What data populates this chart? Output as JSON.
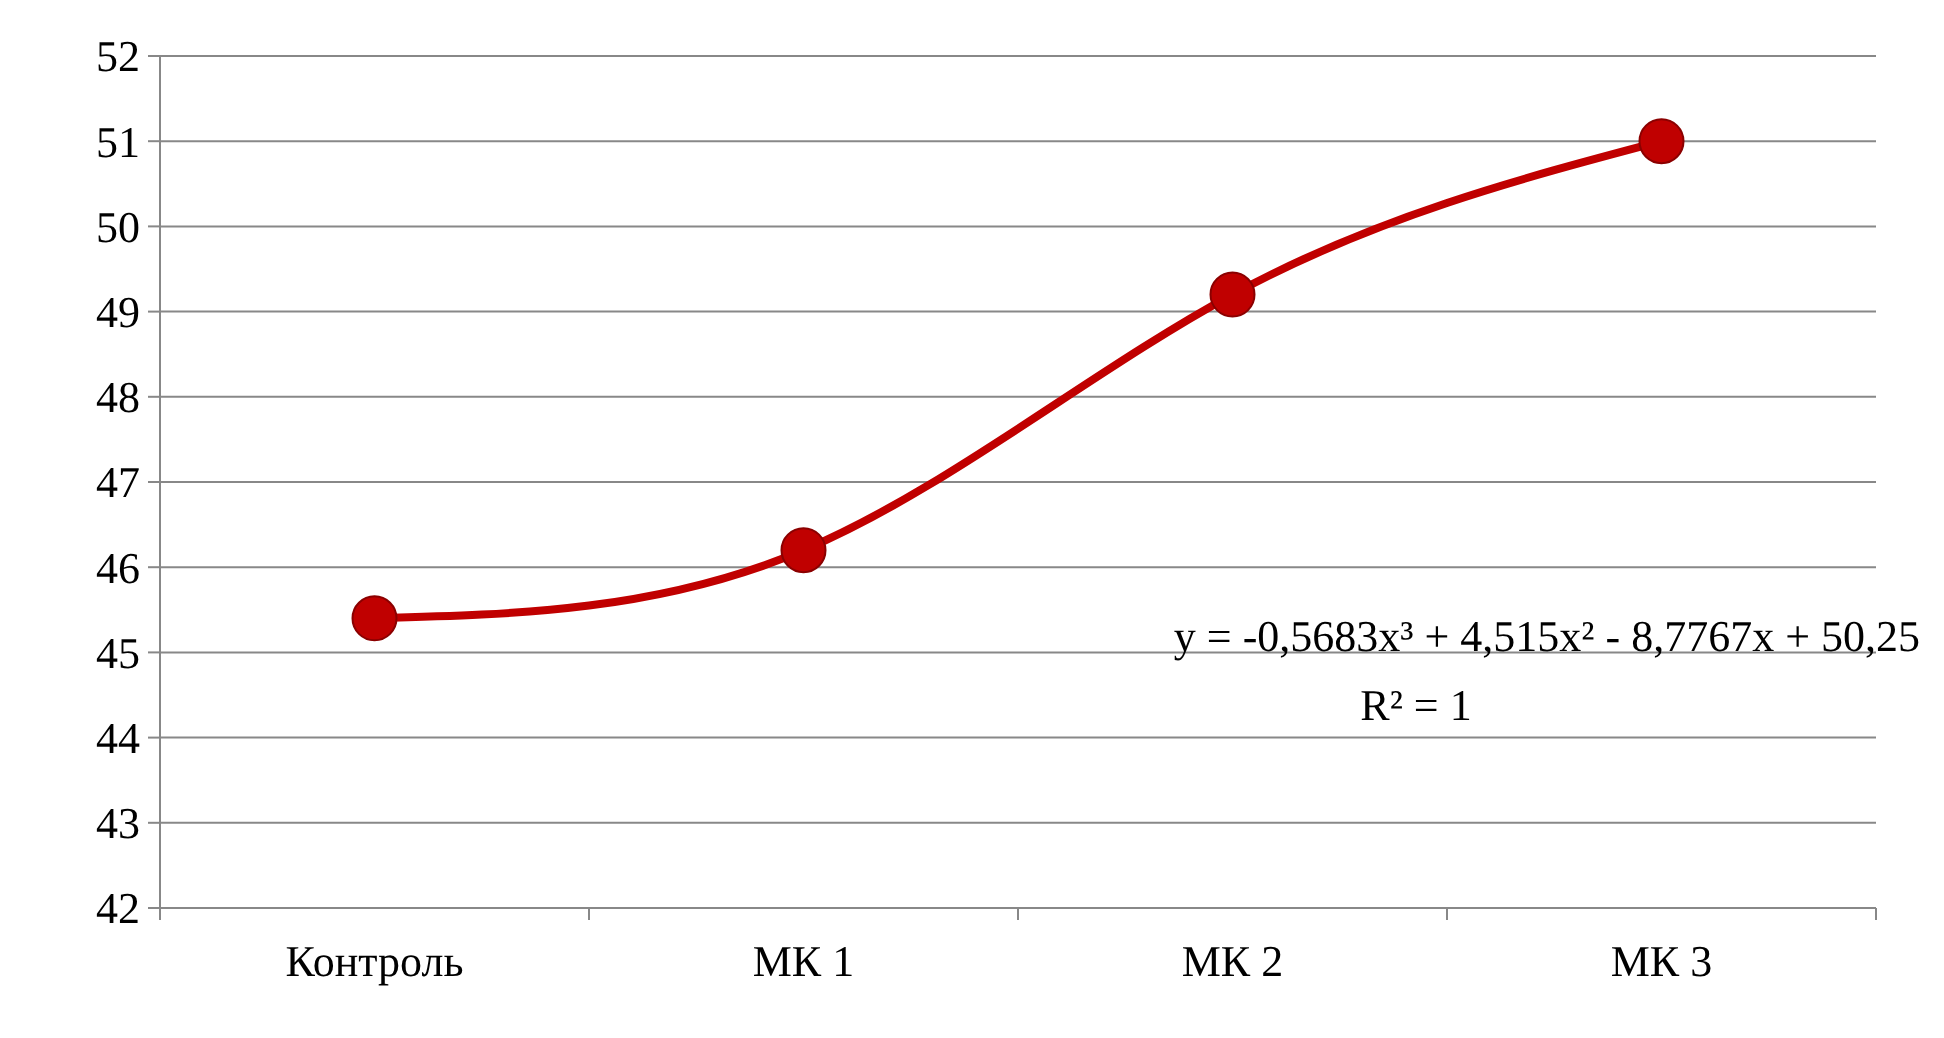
{
  "chart_data": {
    "type": "line",
    "categories": [
      "Контроль",
      "МК 1",
      "МК 2",
      "МК 3"
    ],
    "series": [
      {
        "color": "#c00000",
        "values": [
          45.4,
          46.2,
          49.2,
          51.0
        ]
      }
    ],
    "ylim": [
      42,
      52
    ],
    "yticks": [
      42,
      43,
      44,
      45,
      46,
      47,
      48,
      49,
      50,
      51,
      52
    ],
    "grid": "y",
    "marker": "circle",
    "line_style": "solid",
    "annotations": [
      "y = -0,5683x³ + 4,515x² - 8,7767x + 50,25",
      "R² = 1"
    ]
  }
}
